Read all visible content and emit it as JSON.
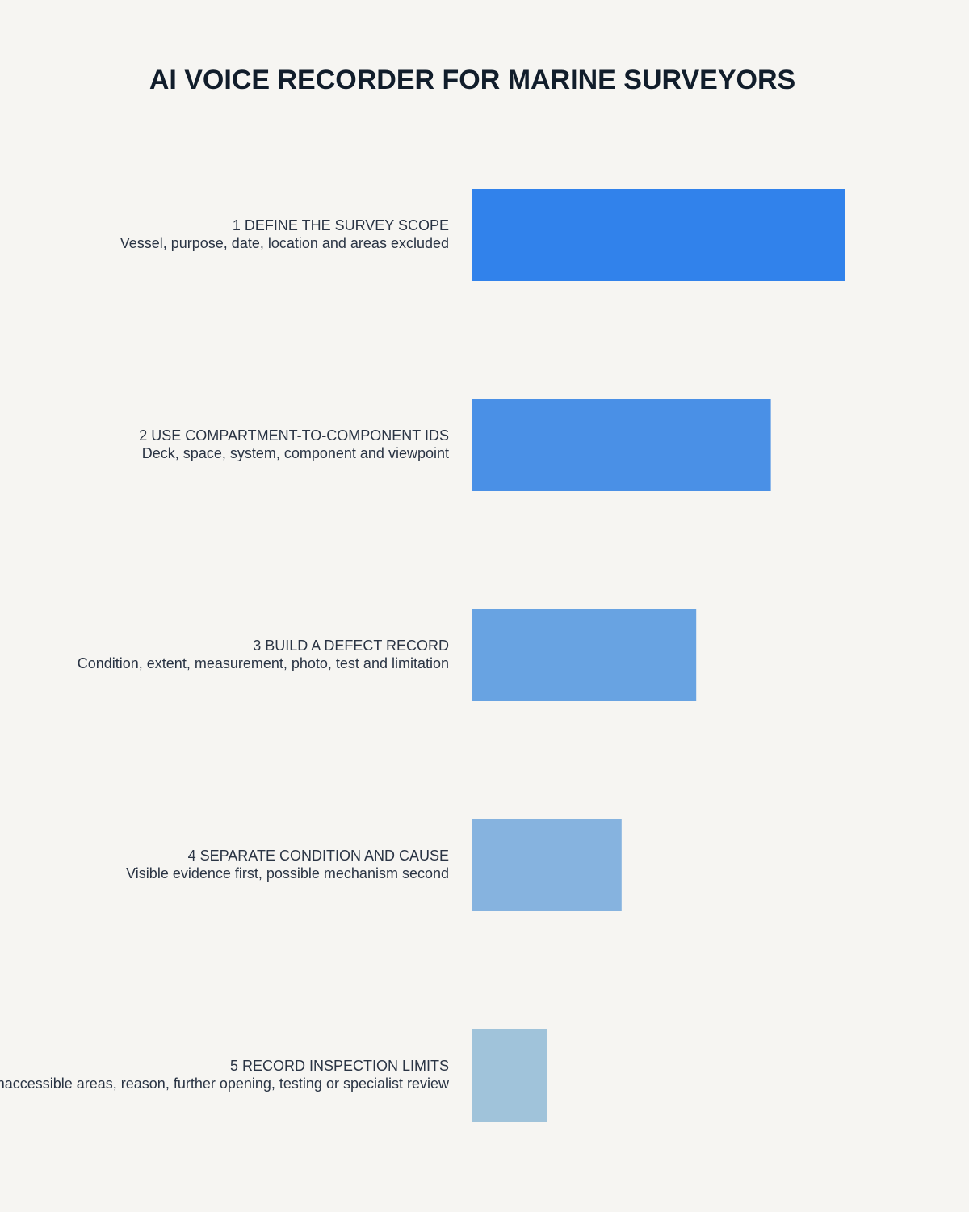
{
  "chart_data": {
    "type": "bar",
    "orientation": "horizontal",
    "title": "AI VOICE RECORDER FOR MARINE SURVEYORS",
    "categories": [
      "1 DEFINE THE SURVEY SCOPE",
      "2 USE COMPARTMENT-TO-COMPONENT IDS",
      "3 BUILD A DEFECT RECORD",
      "4 SEPARATE CONDITION AND CAUSE",
      "5 RECORD INSPECTION LIMITS"
    ],
    "descriptions": [
      "Vessel, purpose, date, location and areas excluded",
      "Deck, space, system, component and viewpoint",
      "Condition, extent, measurement, photo, test and limitation",
      "Visible evidence first, possible mechanism second",
      "Inaccessible areas, reason, further opening, testing or specialist review"
    ],
    "values": [
      5,
      4,
      3,
      2,
      1
    ],
    "colors": [
      "#3182eb",
      "#4a90e6",
      "#68a3e2",
      "#86b3df",
      "#a0c3da"
    ],
    "xlim": [
      0,
      5
    ]
  }
}
